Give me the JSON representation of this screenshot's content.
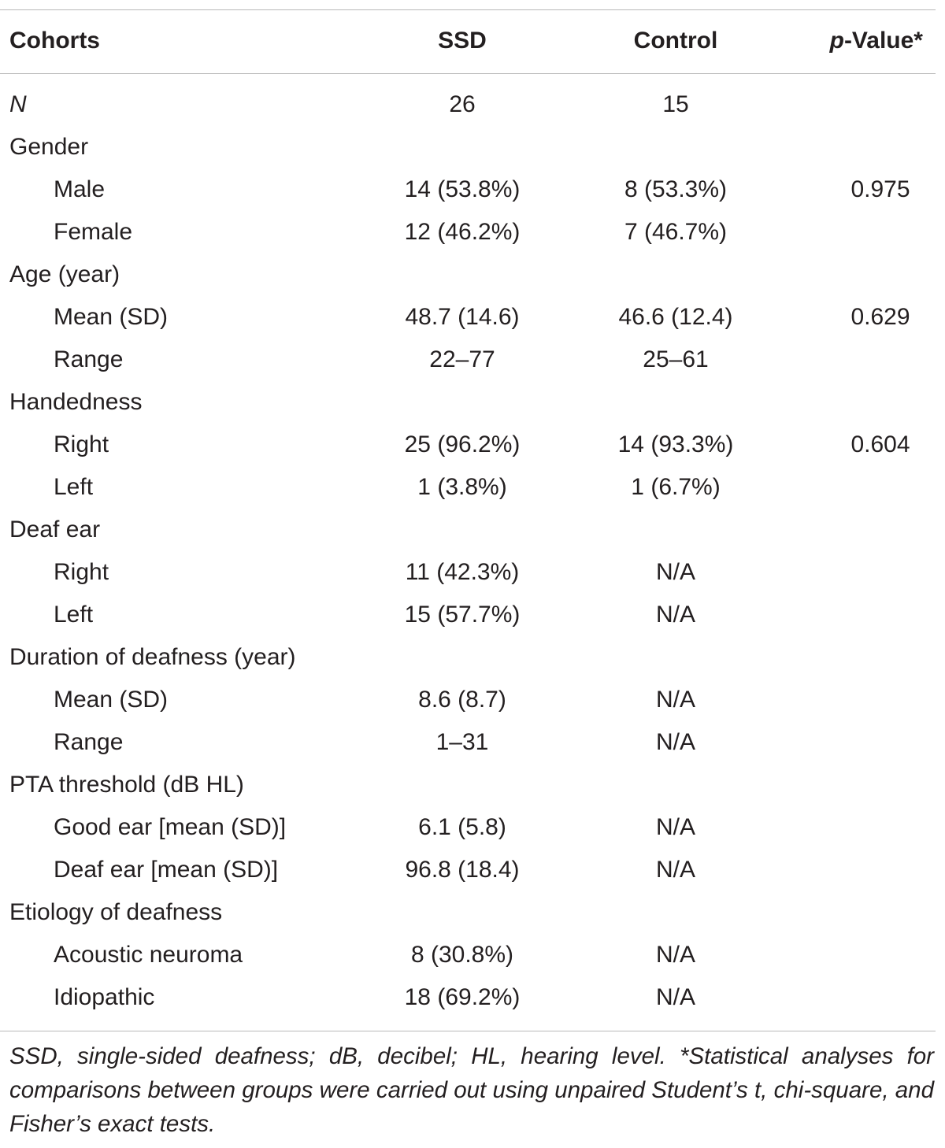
{
  "table": {
    "columns": [
      "Cohorts",
      "SSD",
      "Control",
      "p-Value*"
    ],
    "rows": [
      {
        "label": "N",
        "values": [
          "26",
          "15"
        ]
      },
      {
        "label": "Gender",
        "items": [
          {
            "label": "Male",
            "values": [
              "14 (53.8%)",
              "8 (53.3%)",
              "0.975"
            ]
          },
          {
            "label": "Female",
            "values": [
              "12 (46.2%)",
              "7 (46.7%)"
            ]
          }
        ]
      },
      {
        "label": "Age (year)",
        "items": [
          {
            "label": "Mean (SD)",
            "values": [
              "48.7 (14.6)",
              "46.6 (12.4)",
              "0.629"
            ]
          },
          {
            "label": "Range",
            "values": [
              "22–77",
              "25–61"
            ]
          }
        ]
      },
      {
        "label": "Handedness",
        "items": [
          {
            "label": "Right",
            "values": [
              "25 (96.2%)",
              "14 (93.3%)",
              "0.604"
            ]
          },
          {
            "label": "Left",
            "values": [
              "1 (3.8%)",
              "1 (6.7%)"
            ]
          }
        ]
      },
      {
        "label": "Deaf ear",
        "items": [
          {
            "label": "Right",
            "values": [
              "11 (42.3%)",
              "N/A"
            ]
          },
          {
            "label": "Left",
            "values": [
              "15 (57.7%)",
              "N/A"
            ]
          }
        ]
      },
      {
        "label": "Duration of deafness (year)",
        "items": [
          {
            "label": "Mean (SD)",
            "values": [
              "8.6 (8.7)",
              "N/A"
            ]
          },
          {
            "label": "Range",
            "values": [
              "1–31",
              "N/A"
            ]
          }
        ]
      },
      {
        "label": "PTA threshold (dB HL)",
        "items": [
          {
            "label": "Good ear [mean (SD)]",
            "values": [
              "6.1 (5.8)",
              "N/A"
            ]
          },
          {
            "label": "Deaf ear [mean (SD)]",
            "values": [
              "96.8 (18.4)",
              "N/A"
            ]
          }
        ]
      },
      {
        "label": "Etiology of deafness",
        "items": [
          {
            "label": "Acoustic neuroma",
            "values": [
              "8 (30.8%)",
              "N/A"
            ]
          },
          {
            "label": "Idiopathic",
            "values": [
              "18 (69.2%)",
              "N/A"
            ]
          }
        ]
      }
    ],
    "footnote": "SSD, single-sided deafness; dB, decibel; HL, hearing level. *Statistical analyses for comparisons between groups were carried out using unpaired Student’s t, chi-square, and Fisher’s exact tests."
  }
}
